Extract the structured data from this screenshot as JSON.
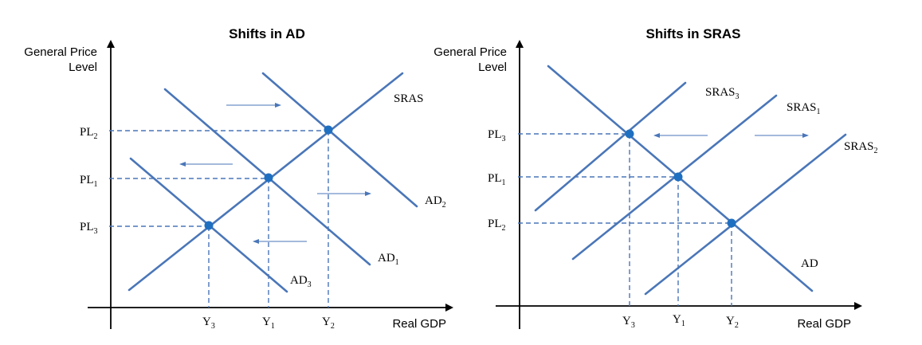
{
  "left": {
    "title": "Shifts in AD",
    "y_axis": [
      "General Price",
      "Level"
    ],
    "x_axis": "Real GDP",
    "price_levels": [
      {
        "base": "PL",
        "sub": "2"
      },
      {
        "base": "PL",
        "sub": "1"
      },
      {
        "base": "PL",
        "sub": "3"
      }
    ],
    "outputs": [
      {
        "base": "Y",
        "sub": "3"
      },
      {
        "base": "Y",
        "sub": "1"
      },
      {
        "base": "Y",
        "sub": "2"
      }
    ],
    "curves": [
      {
        "base": "SRAS",
        "sub": ""
      },
      {
        "base": "AD",
        "sub": "2"
      },
      {
        "base": "AD",
        "sub": "1"
      },
      {
        "base": "AD",
        "sub": "3"
      }
    ]
  },
  "right": {
    "title": "Shifts in SRAS",
    "y_axis": [
      "General Price",
      "Level"
    ],
    "x_axis": "Real GDP",
    "price_levels": [
      {
        "base": "PL",
        "sub": "3"
      },
      {
        "base": "PL",
        "sub": "1"
      },
      {
        "base": "PL",
        "sub": "2"
      }
    ],
    "outputs": [
      {
        "base": "Y",
        "sub": "3"
      },
      {
        "base": "Y",
        "sub": "1"
      },
      {
        "base": "Y",
        "sub": "2"
      }
    ],
    "curves": [
      {
        "base": "SRAS",
        "sub": "3"
      },
      {
        "base": "SRAS",
        "sub": "1"
      },
      {
        "base": "SRAS",
        "sub": "2"
      },
      {
        "base": "AD",
        "sub": ""
      }
    ]
  },
  "colors": {
    "curve": "#4a76b8",
    "point": "#1f6fc1",
    "axis": "#000000"
  }
}
